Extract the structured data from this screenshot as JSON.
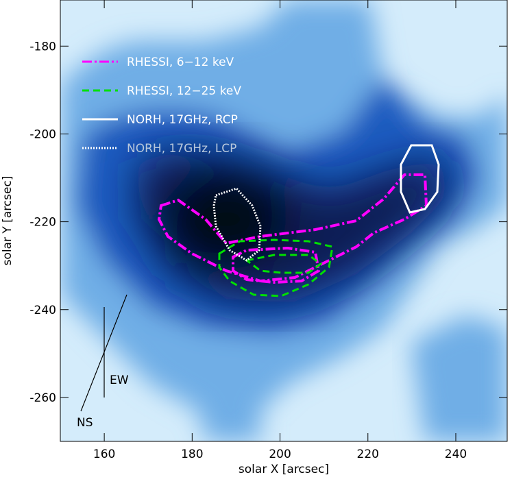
{
  "chart_data": {
    "type": "image",
    "xlabel": "solar X [arcsec]",
    "ylabel": "solar Y [arcsec]",
    "xlim": [
      150,
      251.7
    ],
    "ylim": [
      -270,
      -169.5
    ],
    "xticks": [
      160,
      180,
      200,
      220,
      240
    ],
    "yticks": [
      -180,
      -200,
      -220,
      -240,
      -260
    ],
    "legend": [
      {
        "name": "RHESSI, 6−12 keV",
        "color": "#ff00ff",
        "dash": "14 4 3 4",
        "text_color": "#ffffff"
      },
      {
        "name": "RHESSI, 12−25 keV",
        "color": "#00e000",
        "dash": "10 6",
        "text_color": "#ffffff"
      },
      {
        "name": "NORH, 17GHz, RCP",
        "color": "#ffffff",
        "dash": "none",
        "text_color": "#ffffff"
      },
      {
        "name": "NORH, 17GHz, LCP",
        "color": "#ffffff",
        "dash": "2 2",
        "text_color": "#b8c8dc"
      }
    ],
    "annotations": [
      "EW",
      "NS"
    ]
  }
}
